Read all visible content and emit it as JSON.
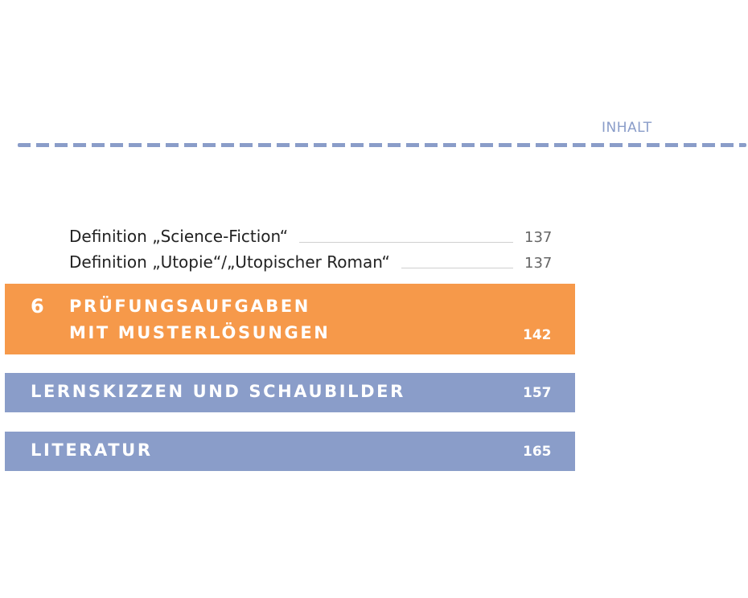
{
  "header": {
    "label": "INHALT"
  },
  "toc_entries": [
    {
      "text": "Definition „Science-Fiction“",
      "page": "137"
    },
    {
      "text": "Definition „Utopie“/„Utopischer Roman“",
      "page": "137"
    }
  ],
  "chapter": {
    "number": "6",
    "title_line1": "PRÜFUNGSAUFGABEN",
    "title_line2": "MIT MUSTERLÖSUNGEN",
    "page": "142"
  },
  "sections": [
    {
      "title": "LERNSKIZZEN UND SCHAUBILDER",
      "page": "157"
    },
    {
      "title": "LITERATUR",
      "page": "165"
    }
  ],
  "colors": {
    "accent_orange": "#f6994a",
    "accent_blue": "#8a9dc9"
  }
}
